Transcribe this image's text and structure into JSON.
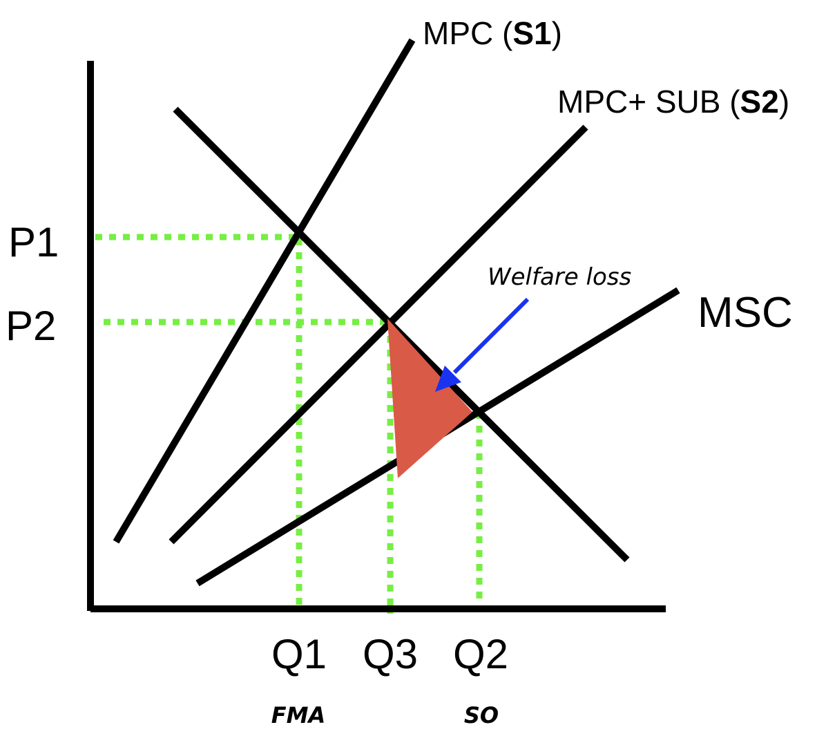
{
  "colors": {
    "curve": "#000000",
    "guide": "#77ee44",
    "welfare_loss_fill": "#d95a47",
    "arrow": "#1a33ee"
  },
  "curves": {
    "mpc": {
      "prefix": "MPC (",
      "bold": "S1",
      "suffix": ")"
    },
    "mpc_sub": {
      "prefix": "MPC+ SUB (",
      "bold": "S2",
      "suffix": ")"
    },
    "msc": "MSC"
  },
  "price_labels": {
    "p1": "P1",
    "p2": "P2"
  },
  "quantity_labels": {
    "q1": "Q1",
    "q3": "Q3",
    "q2": "Q2"
  },
  "quantity_notes": {
    "fma": "FMA",
    "so": "SO"
  },
  "annotation": {
    "welfare_loss": "Welfare loss"
  }
}
